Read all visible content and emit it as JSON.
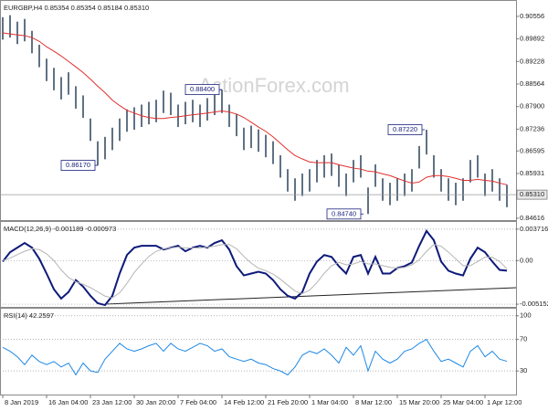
{
  "chart_data": [
    {
      "type": "hilo",
      "title": "EURGBP,H4 0.85354 0.85354 0.85184 0.85310",
      "categories": [
        "8 Jan 2019",
        null,
        null,
        null,
        null,
        null,
        "16 Jan 04:00",
        null,
        null,
        null,
        null,
        null,
        "23 Jan 12:00",
        null,
        null,
        null,
        null,
        null,
        "30 Jan 20:00",
        null,
        null,
        null,
        null,
        null,
        "7 Feb 04:00",
        null,
        null,
        null,
        null,
        null,
        "14 Feb 12:00",
        null,
        null,
        null,
        null,
        null,
        "21 Feb 20:00",
        null,
        null,
        null,
        null,
        null,
        "1 Mar 04:00",
        null,
        null,
        null,
        null,
        null,
        "8 Mar 12:00",
        null,
        null,
        null,
        null,
        null,
        "15 Mar 20:00",
        null,
        null,
        null,
        null,
        null,
        "25 Mar 04:00",
        null,
        null,
        null,
        null,
        null,
        "1 Apr 12:00",
        null,
        null,
        null
      ],
      "high": [
        0.9053,
        0.9059,
        0.904,
        0.9048,
        0.9013,
        0.8972,
        0.8931,
        0.8904,
        0.8877,
        0.8891,
        0.885,
        0.8823,
        0.8755,
        0.8688,
        0.8701,
        0.8728,
        0.8755,
        0.8782,
        0.8788,
        0.8796,
        0.8804,
        0.881,
        0.8837,
        0.8831,
        0.8796,
        0.8804,
        0.881,
        0.8796,
        0.8815,
        0.8831,
        0.884,
        0.8796,
        0.8769,
        0.8728,
        0.8734,
        0.8723,
        0.8707,
        0.8688,
        0.8647,
        0.8606,
        0.8579,
        0.8593,
        0.8606,
        0.8633,
        0.8647,
        0.8652,
        0.862,
        0.8593,
        0.8633,
        0.8647,
        0.8552,
        0.862,
        0.8579,
        0.8566,
        0.8579,
        0.8593,
        0.8606,
        0.8674,
        0.8722,
        0.8647,
        0.8606,
        0.8579,
        0.8566,
        0.8579,
        0.8633,
        0.8647,
        0.8593,
        0.8606,
        0.8579,
        0.856
      ],
      "low": [
        0.8987,
        0.8993,
        0.8974,
        0.8982,
        0.8947,
        0.8906,
        0.8865,
        0.8838,
        0.8811,
        0.8825,
        0.8784,
        0.8757,
        0.8689,
        0.8617,
        0.8635,
        0.8662,
        0.8689,
        0.8716,
        0.8722,
        0.873,
        0.8738,
        0.8744,
        0.8771,
        0.8765,
        0.873,
        0.8738,
        0.8744,
        0.873,
        0.8749,
        0.8765,
        0.8771,
        0.873,
        0.8703,
        0.8662,
        0.8668,
        0.8657,
        0.8641,
        0.8621,
        0.8581,
        0.854,
        0.8513,
        0.8527,
        0.854,
        0.8567,
        0.8581,
        0.8586,
        0.8554,
        0.8527,
        0.8567,
        0.8581,
        0.8474,
        0.8554,
        0.8513,
        0.85,
        0.8513,
        0.8527,
        0.854,
        0.8608,
        0.8649,
        0.8581,
        0.854,
        0.8513,
        0.85,
        0.8513,
        0.8567,
        0.8581,
        0.8527,
        0.854,
        0.8513,
        0.8494
      ],
      "color": "#1c3550",
      "ma": {
        "color": "#e0302e",
        "values": [
          0.9007,
          0.9004,
          0.9001,
          0.8999,
          0.8993,
          0.8982,
          0.8966,
          0.8953,
          0.8939,
          0.8923,
          0.8907,
          0.889,
          0.8871,
          0.885,
          0.8831,
          0.8809,
          0.8793,
          0.8779,
          0.8771,
          0.8763,
          0.8758,
          0.8755,
          0.8755,
          0.8758,
          0.876,
          0.8763,
          0.8766,
          0.8768,
          0.8771,
          0.8774,
          0.8777,
          0.8774,
          0.8768,
          0.8758,
          0.8744,
          0.873,
          0.8717,
          0.8701,
          0.8682,
          0.8663,
          0.8646,
          0.8636,
          0.8627,
          0.8625,
          0.8625,
          0.8625,
          0.8619,
          0.8614,
          0.8609,
          0.8606,
          0.86,
          0.8598,
          0.8592,
          0.8587,
          0.8579,
          0.8571,
          0.8565,
          0.8568,
          0.8582,
          0.8587,
          0.8587,
          0.8584,
          0.8579,
          0.8573,
          0.8573,
          0.8576,
          0.8573,
          0.8571,
          0.8565,
          0.856
        ]
      },
      "ylim": [
        0.8456,
        0.9101
      ],
      "yticks": [
        0.90556,
        0.89892,
        0.89228,
        0.88564,
        {
          "value": 0.879,
          "label": "0.87900"
        },
        0.87236,
        0.86595,
        0.85931,
        0.84616
      ],
      "last_price": {
        "value": 0.8531,
        "label": "0.85310"
      },
      "annotations": [
        {
          "value": 0.8617,
          "label": "0.86170"
        },
        {
          "value": 0.884,
          "label": "0.88400"
        },
        {
          "value": 0.8474,
          "label": "0.84740"
        },
        {
          "value": 0.8722,
          "label": "0.87220"
        }
      ]
    },
    {
      "type": "line",
      "title": "MACD(12,26,9) -0.001189 -0.000973",
      "series": [
        {
          "color": "#0d1a7a",
          "values": [
            -0.00011,
            0.00099,
            0.00153,
            0.00208,
            0.00153,
            0.00022,
            -0.00153,
            -0.00339,
            -0.00449,
            -0.00372,
            -0.0023,
            -0.00307,
            -0.00416,
            -0.00504,
            -0.00526,
            -0.00416,
            -0.00153,
            0.00066,
            0.00153,
            0.00175,
            0.00175,
            0.00175,
            0.00131,
            0.00153,
            0.00175,
            0.0011,
            0.00153,
            0.00175,
            0.00153,
            0.00208,
            0.00241,
            0.00131,
            -0.00066,
            -0.00175,
            -0.00153,
            -0.00131,
            -0.00153,
            -0.0023,
            -0.00339,
            -0.00416,
            -0.00449,
            -0.00372,
            -0.00153,
            -0.00011,
            0.00066,
            0.00044,
            -0.00066,
            -0.00153,
            0.00044,
            0.00066,
            -0.00153,
            0.00044,
            -0.00153,
            -0.00153,
            -0.00088,
            -0.00066,
            -0.00022,
            0.00175,
            0.0035,
            0.00241,
            -0.00011,
            -0.0012,
            -0.00153,
            -0.00175,
            0.00022,
            0.00153,
            0.00099,
            -0.00011,
            -0.0011,
            -0.00119
          ]
        },
        {
          "color": "#b5b5b5",
          "values": [
            0.0,
            0.0003,
            0.0007,
            0.0011,
            0.0014,
            0.0013,
            0.0008,
            0.0,
            -0.0011,
            -0.002,
            -0.0025,
            -0.0028,
            -0.0032,
            -0.0037,
            -0.0042,
            -0.0044,
            -0.0038,
            -0.0027,
            -0.0014,
            -0.0004,
            0.0005,
            0.0011,
            0.0014,
            0.0015,
            0.0016,
            0.0015,
            0.0015,
            0.0015,
            0.0016,
            0.0017,
            0.0019,
            0.0019,
            0.0014,
            0.0005,
            -0.0003,
            -0.0009,
            -0.0012,
            -0.0016,
            -0.0022,
            -0.0029,
            -0.0036,
            -0.0039,
            -0.0035,
            -0.0026,
            -0.0015,
            -0.0006,
            -0.0002,
            -0.0005,
            -0.0004,
            -0.0001,
            -0.0004,
            -0.0004,
            -0.0006,
            -0.0008,
            -0.0009,
            -0.0008,
            -0.0005,
            0.0001,
            0.0011,
            0.0019,
            0.0017,
            0.001,
            0.0002,
            -0.0006,
            -0.0006,
            -0.0001,
            0.0004,
            0.0004,
            -0.0001,
            -0.00097
          ]
        }
      ],
      "ylim": [
        -0.00547,
        0.00457
      ],
      "yticks": [
        0.003716,
        {
          "value": 0,
          "label": "0.00"
        },
        -0.005152
      ],
      "grid": true
    },
    {
      "type": "line",
      "title": "RSI(14) 42.2597",
      "series": [
        {
          "color": "#1e88e5",
          "values": [
            60,
            55,
            48,
            38,
            50,
            42,
            38,
            42,
            35,
            40,
            25,
            40,
            30,
            28,
            45,
            55,
            65,
            58,
            55,
            58,
            62,
            65,
            55,
            65,
            58,
            55,
            60,
            65,
            62,
            55,
            58,
            48,
            45,
            42,
            45,
            40,
            38,
            33,
            30,
            25,
            35,
            50,
            55,
            52,
            58,
            50,
            40,
            60,
            50,
            62,
            30,
            55,
            45,
            40,
            45,
            55,
            58,
            65,
            70,
            55,
            42,
            45,
            40,
            35,
            55,
            62,
            48,
            55,
            45,
            42.26
          ]
        }
      ],
      "ylim": [
        0,
        109
      ],
      "yticks": [
        100,
        70,
        30
      ],
      "grid": true
    }
  ]
}
